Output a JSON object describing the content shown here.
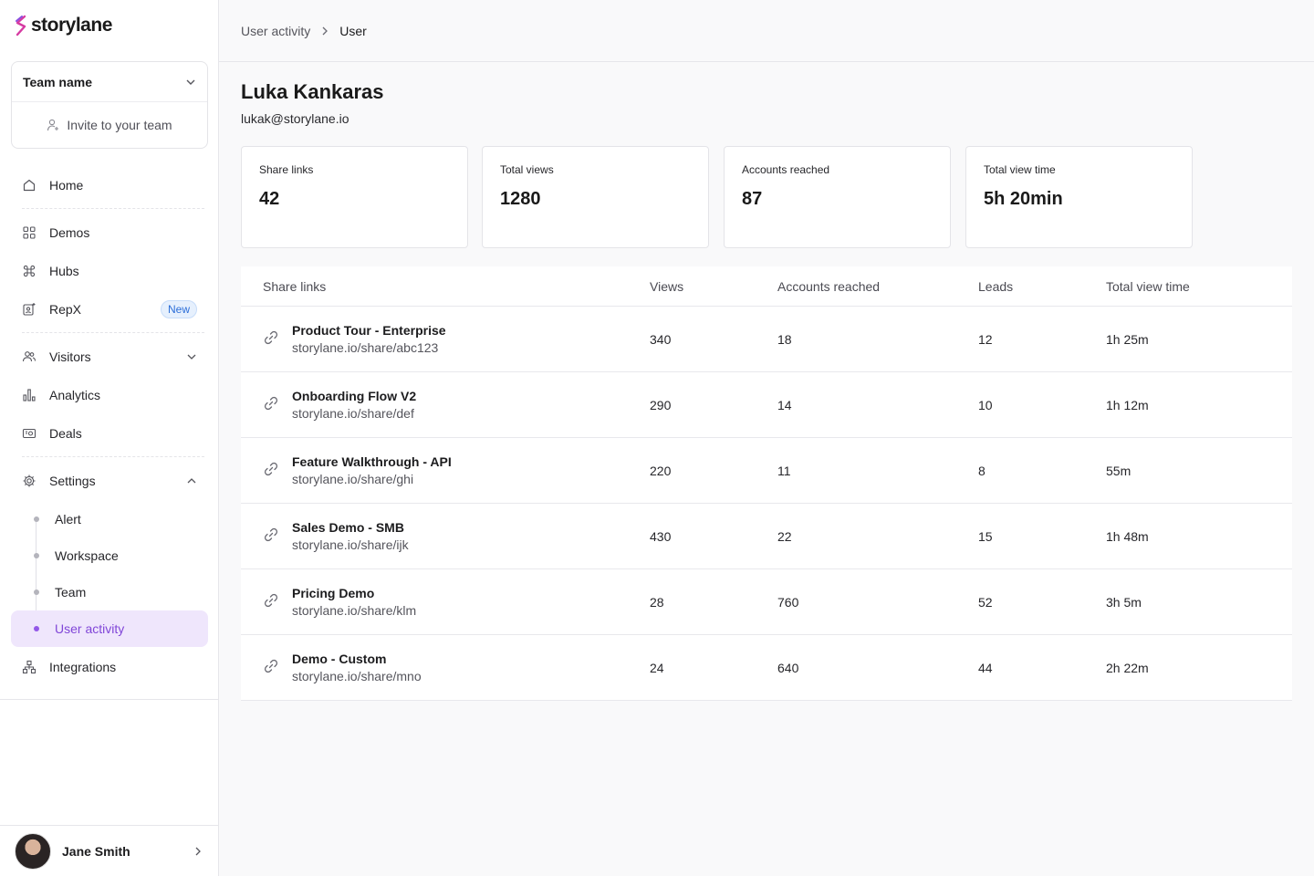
{
  "app": {
    "logo_text": "storylane",
    "brand_color": "#d63ba2"
  },
  "team": {
    "name": "Team name",
    "invite_label": "Invite to your team"
  },
  "nav": {
    "home": "Home",
    "demos": "Demos",
    "hubs": "Hubs",
    "repx": "RepX",
    "repx_badge": "New",
    "visitors": "Visitors",
    "analytics": "Analytics",
    "deals": "Deals",
    "settings": "Settings",
    "settings_sub": [
      "Alert",
      "Workspace",
      "Team",
      "User activity"
    ],
    "integrations": "Integrations"
  },
  "user": {
    "name": "Jane Smith"
  },
  "breadcrumb": {
    "parent": "User activity",
    "current": "User"
  },
  "profile": {
    "name": "Luka Kankaras",
    "email": "lukak@storylane.io"
  },
  "stats": [
    {
      "label": "Share links",
      "value": "42"
    },
    {
      "label": "Total views",
      "value": "1280"
    },
    {
      "label": "Accounts reached",
      "value": "87"
    },
    {
      "label": "Total view time",
      "value": "5h 20min"
    }
  ],
  "table": {
    "headers": [
      "Share links",
      "Views",
      "Accounts reached",
      "Leads",
      "Total view time"
    ],
    "rows": [
      {
        "title": "Product Tour - Enterprise",
        "url": "storylane.io/share/abc123",
        "views": "340",
        "accounts": "18",
        "leads": "12",
        "time": "1h 25m"
      },
      {
        "title": "Onboarding Flow V2",
        "url": "storylane.io/share/def",
        "views": "290",
        "accounts": "14",
        "leads": "10",
        "time": "1h 12m"
      },
      {
        "title": "Feature Walkthrough - API",
        "url": "storylane.io/share/ghi",
        "views": "220",
        "accounts": "11",
        "leads": "8",
        "time": "55m"
      },
      {
        "title": "Sales Demo - SMB",
        "url": "storylane.io/share/ijk",
        "views": "430",
        "accounts": "22",
        "leads": "15",
        "time": "1h 48m"
      },
      {
        "title": "Pricing Demo",
        "url": "storylane.io/share/klm",
        "views": "28",
        "accounts": "760",
        "leads": "52",
        "time": "3h 5m"
      },
      {
        "title": "Demo - Custom",
        "url": "storylane.io/share/mno",
        "views": "24",
        "accounts": "640",
        "leads": "44",
        "time": "2h 22m"
      }
    ]
  }
}
